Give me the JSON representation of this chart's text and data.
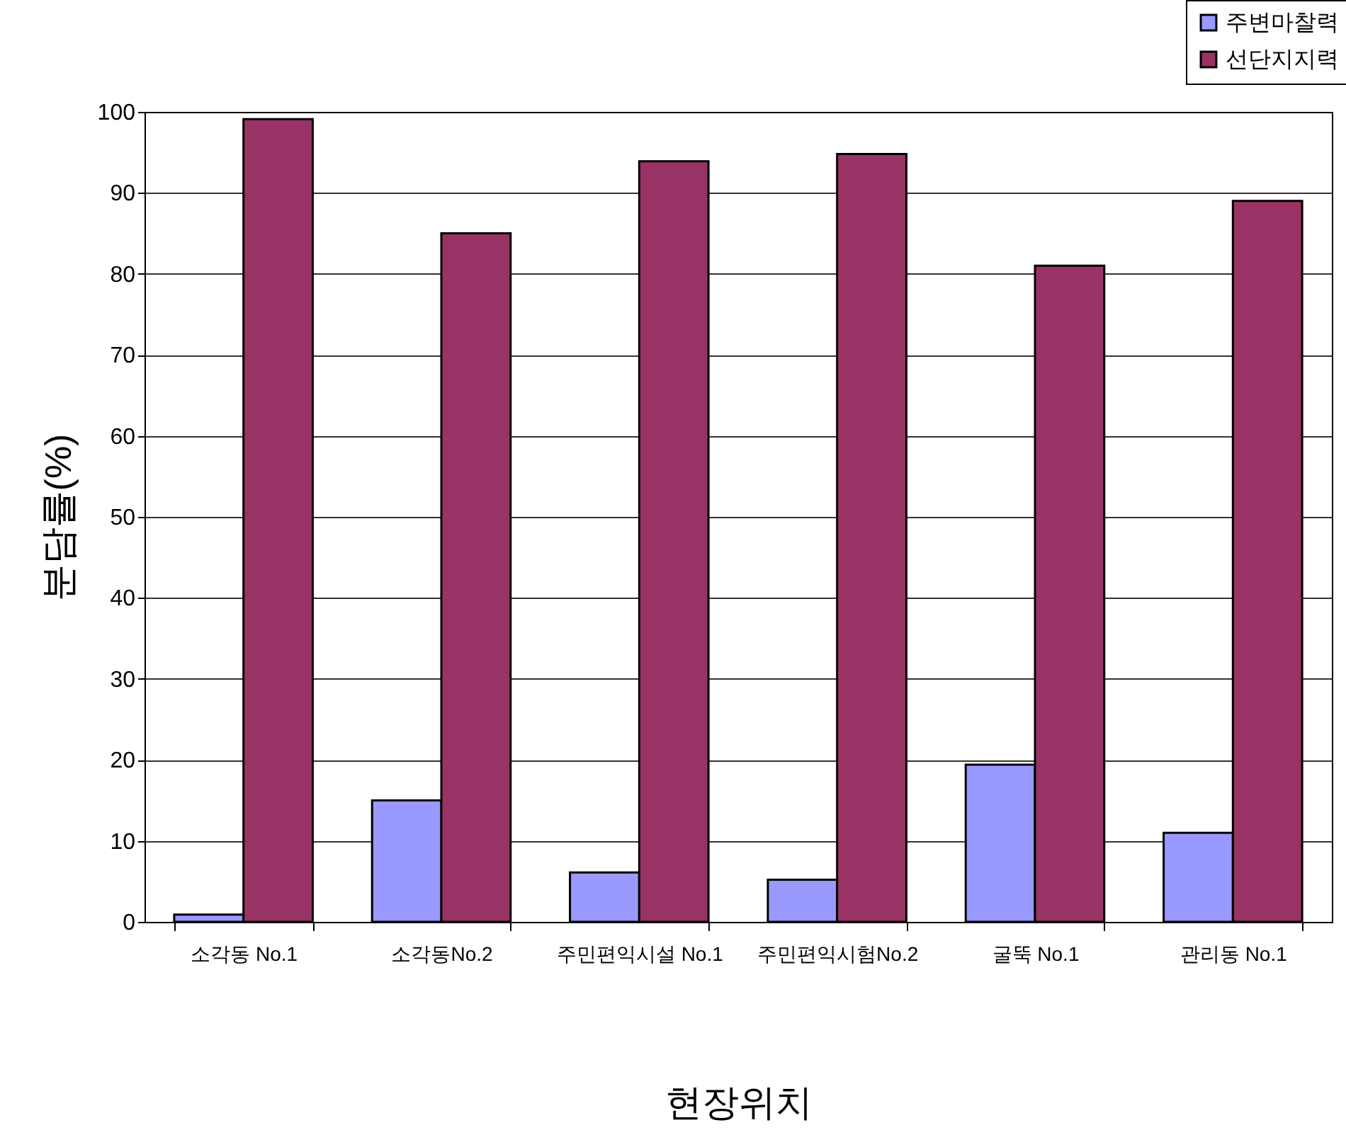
{
  "chart_data": {
    "type": "bar",
    "xlabel": "현장위치",
    "ylabel": "분담률(%)",
    "categories": [
      "소각동 No.1",
      "소각동No.2",
      "주민편익시설 No.1",
      "주민편익시험No.2",
      "굴뚝 No.1",
      "관리동 No.1"
    ],
    "series": [
      {
        "name": "주변마찰력",
        "color": "#9999ff",
        "values": [
          0.9,
          15,
          6.1,
          5.2,
          19.4,
          11
        ]
      },
      {
        "name": "선단지지력",
        "color": "#993366",
        "values": [
          99.1,
          85,
          93.9,
          94.8,
          81,
          89
        ]
      }
    ],
    "ylim": [
      0,
      100
    ],
    "yticks": [
      0,
      10,
      20,
      30,
      40,
      50,
      60,
      70,
      80,
      90,
      100
    ],
    "grid": "y",
    "legend": "top right"
  }
}
